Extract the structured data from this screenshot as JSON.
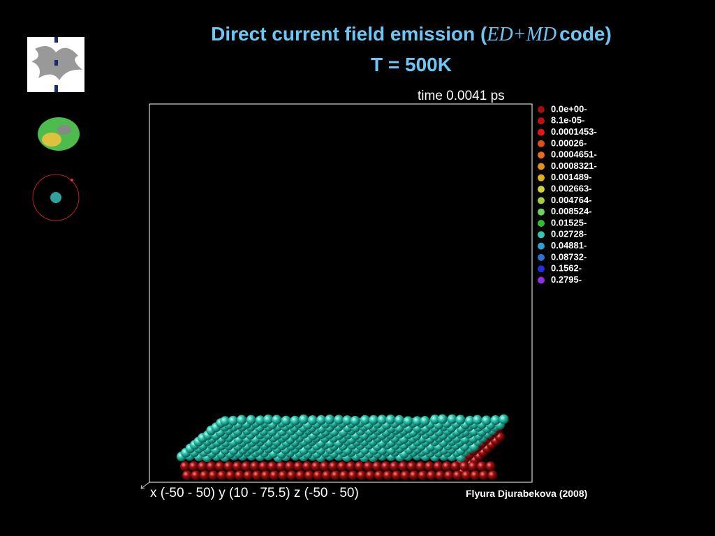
{
  "header": {
    "title": {
      "before": "Direct current field emission (",
      "code_name": "ED+MD",
      "after": "code)"
    },
    "subtitle": "T = 500K"
  },
  "simulation": {
    "time_label": "time 0.0041 ps",
    "axes_label": "x (-50 - 50) y (10 - 75.5) z (-50 - 50)",
    "credit": "Flyura Djurabekova (2008)",
    "legend": [
      {
        "label": "0.0e+00-",
        "color": "#a01010"
      },
      {
        "label": "8.1e-05-",
        "color": "#c01010"
      },
      {
        "label": "0.0001453-",
        "color": "#e01818"
      },
      {
        "label": "0.00026-",
        "color": "#e05018"
      },
      {
        "label": "0.0004651-",
        "color": "#e07020"
      },
      {
        "label": "0.0008321-",
        "color": "#e09020"
      },
      {
        "label": "0.001489-",
        "color": "#e0b020"
      },
      {
        "label": "0.002663-",
        "color": "#d0d040"
      },
      {
        "label": "0.004764-",
        "color": "#a0d040"
      },
      {
        "label": "0.008524-",
        "color": "#70d060"
      },
      {
        "label": "0.01525-",
        "color": "#30c030"
      },
      {
        "label": "0.02728-",
        "color": "#30c8b0"
      },
      {
        "label": "0.04881-",
        "color": "#30a0d0"
      },
      {
        "label": "0.08732-",
        "color": "#3070d0"
      },
      {
        "label": "0.1562-",
        "color": "#2030e0"
      },
      {
        "label": "0.2795-",
        "color": "#9030e0"
      }
    ]
  }
}
